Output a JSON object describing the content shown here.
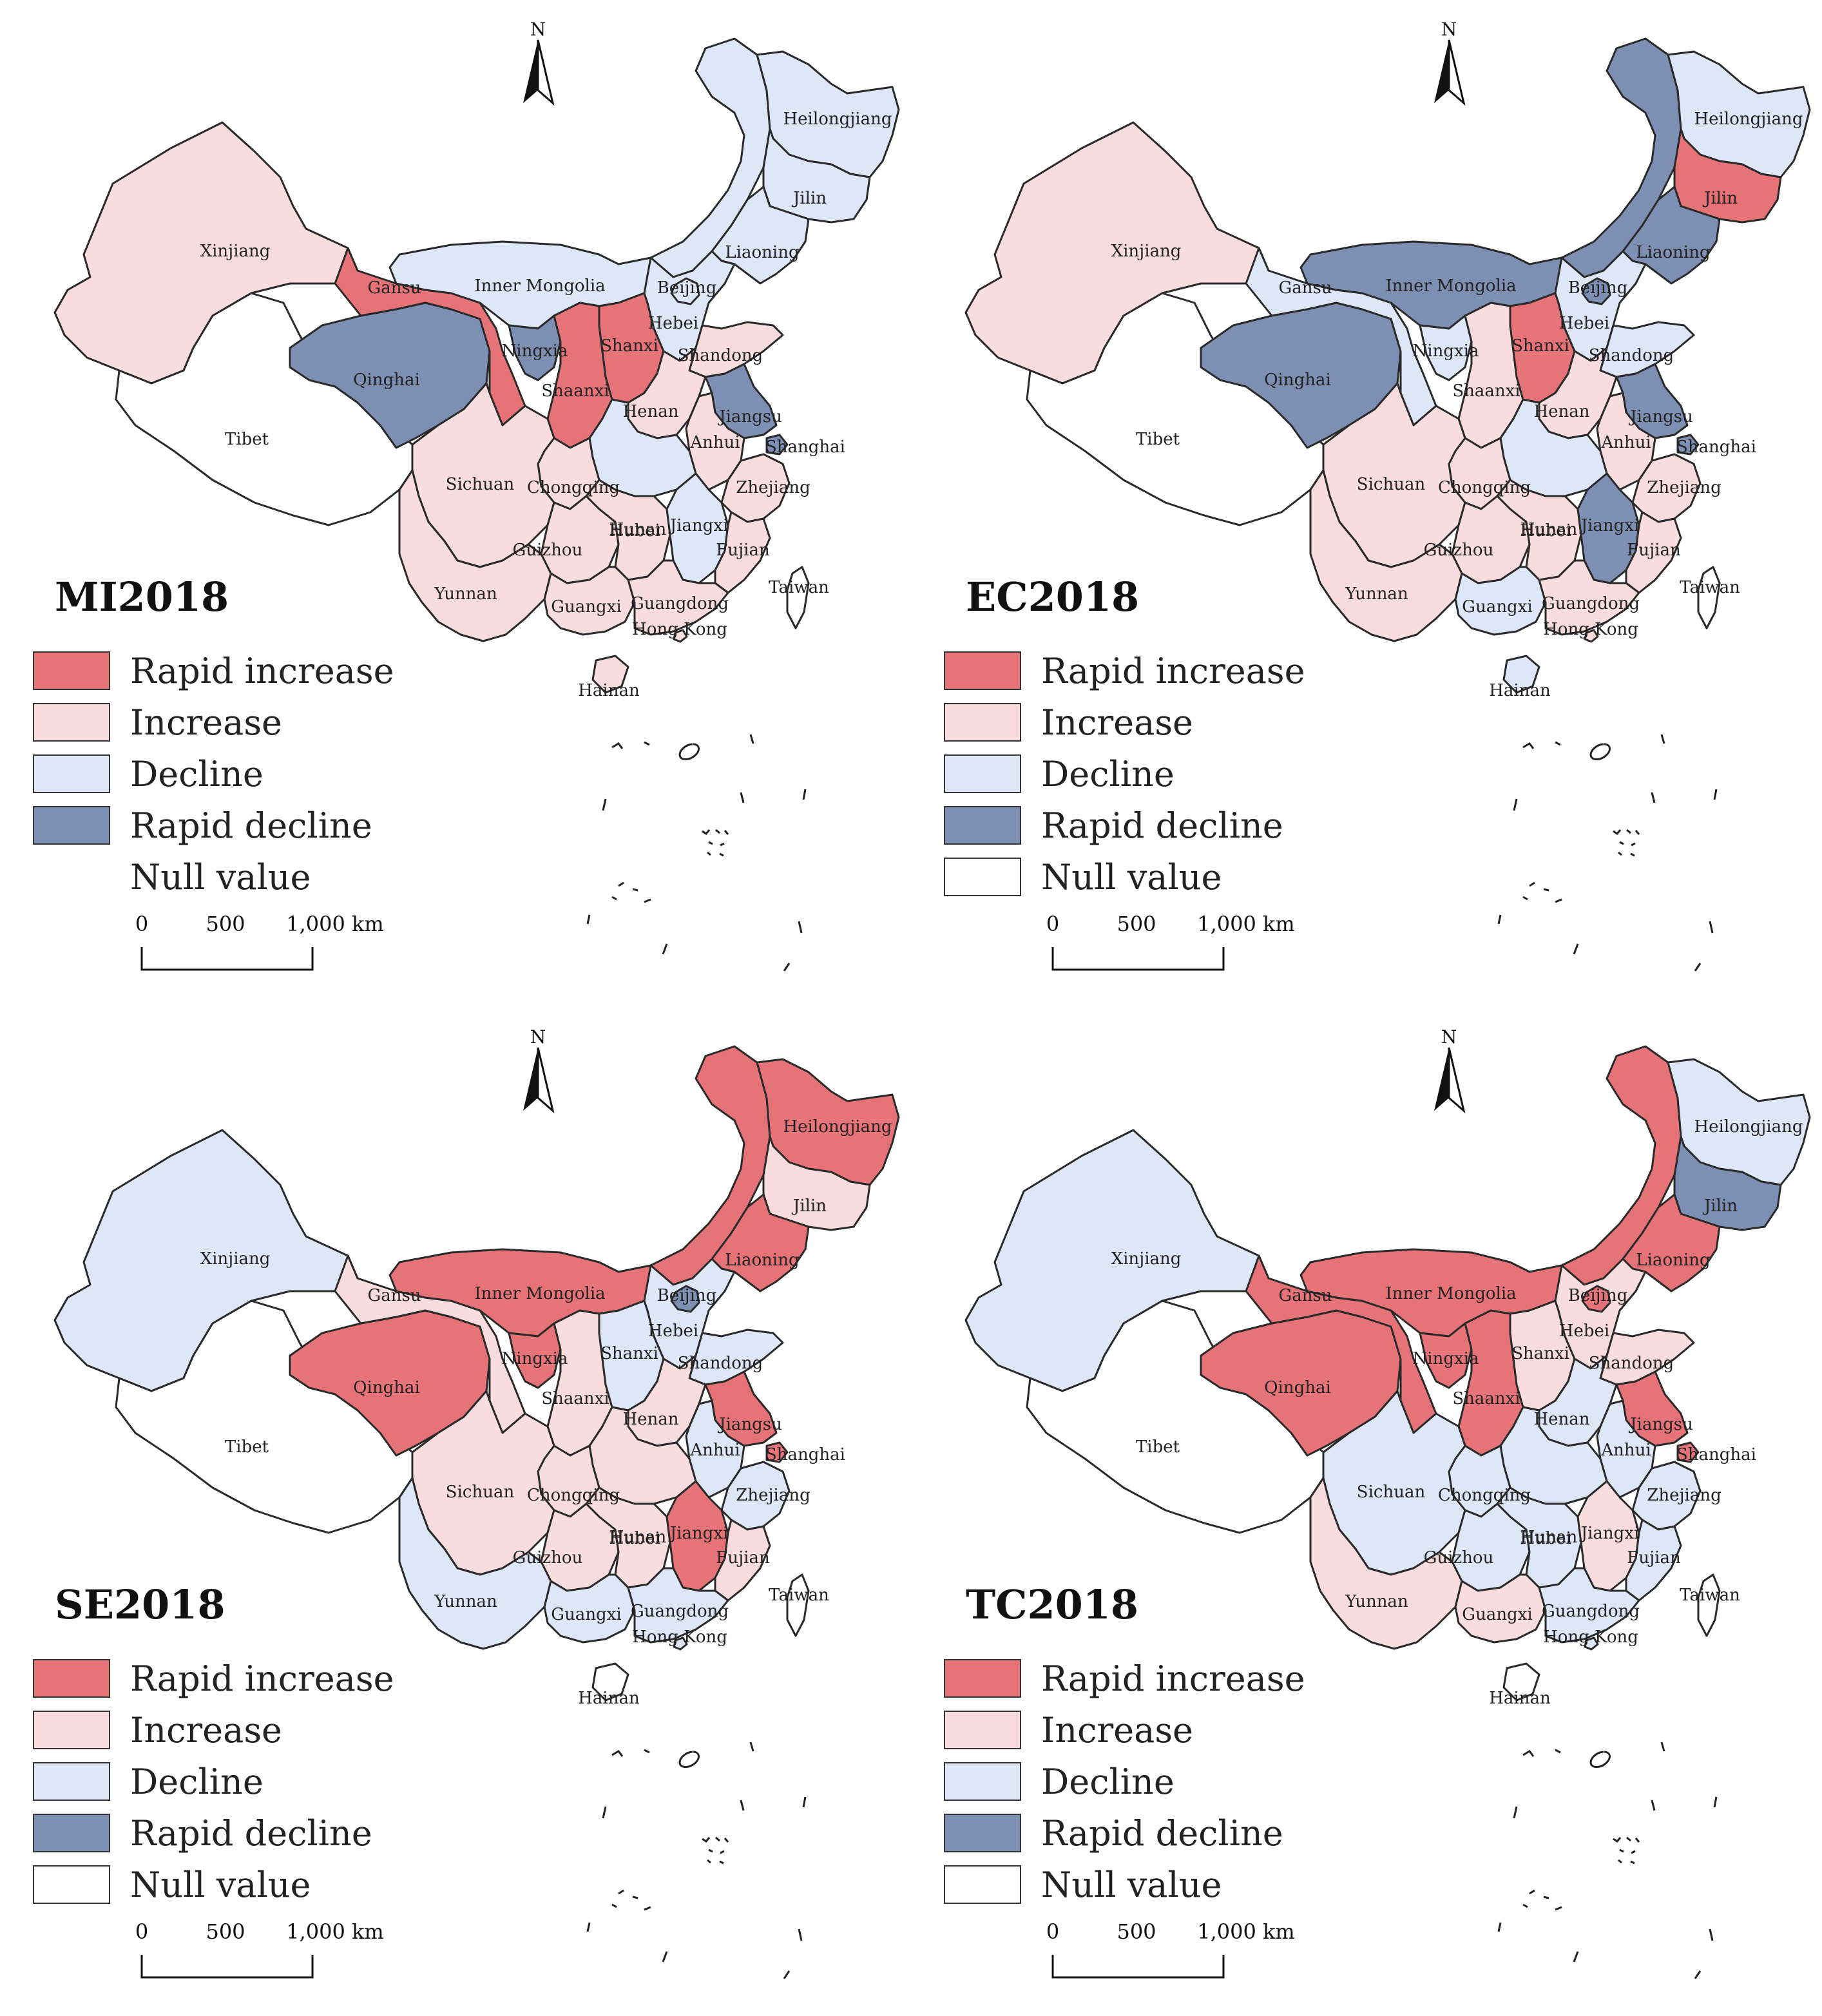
{
  "legend": {
    "categories": [
      {
        "key": "ri",
        "label": "Rapid increase",
        "color": "#e57378"
      },
      {
        "key": "in",
        "label": "Increase",
        "color": "#f9dcdd"
      },
      {
        "key": "de",
        "label": "Decline",
        "color": "#dde7f8"
      },
      {
        "key": "rd",
        "label": "Rapid decline",
        "color": "#7d8fb3"
      },
      {
        "key": "nv",
        "label": "Null value",
        "color": "#ffffff"
      }
    ]
  },
  "scalebar": {
    "labels": [
      "0",
      "500",
      "1,000 km"
    ]
  },
  "north_label": "N",
  "panels": [
    {
      "title": "MI2018",
      "values": {
        "Xinjiang": "in",
        "Tibet": "nv",
        "Qinghai": "rd",
        "Gansu": "ri",
        "Inner Mongolia": "de",
        "Heilongjiang": "de",
        "Jilin": "de",
        "Liaoning": "de",
        "Ningxia": "rd",
        "Shaanxi": "ri",
        "Shanxi": "ri",
        "Hebei": "de",
        "Beijing": "de",
        "Shandong": "in",
        "Henan": "in",
        "Jiangsu": "rd",
        "Shanghai": "rd",
        "Anhui": "in",
        "Hubei": "de",
        "Chongqing": "in",
        "Sichuan": "in",
        "Guizhou": "in",
        "Yunnan": "in",
        "Hunan": "in",
        "Jiangxi": "de",
        "Zhejiang": "in",
        "Fujian": "in",
        "Guangxi": "in",
        "Guangdong": "in",
        "Hong Kong": "in",
        "Hainan": "in",
        "Taiwan": "nv"
      }
    },
    {
      "title": "EC2018",
      "values": {
        "Xinjiang": "in",
        "Tibet": "nv",
        "Qinghai": "rd",
        "Gansu": "de",
        "Inner Mongolia": "rd",
        "Heilongjiang": "de",
        "Jilin": "ri",
        "Liaoning": "rd",
        "Ningxia": "de",
        "Shaanxi": "in",
        "Shanxi": "ri",
        "Hebei": "de",
        "Beijing": "rd",
        "Shandong": "de",
        "Henan": "in",
        "Jiangsu": "rd",
        "Shanghai": "rd",
        "Anhui": "in",
        "Hubei": "de",
        "Chongqing": "in",
        "Sichuan": "in",
        "Guizhou": "in",
        "Yunnan": "in",
        "Hunan": "in",
        "Jiangxi": "rd",
        "Zhejiang": "in",
        "Fujian": "in",
        "Guangxi": "de",
        "Guangdong": "in",
        "Hong Kong": "in",
        "Hainan": "de",
        "Taiwan": "nv"
      }
    },
    {
      "title": "SE2018",
      "values": {
        "Xinjiang": "de",
        "Tibet": "nv",
        "Qinghai": "ri",
        "Gansu": "in",
        "Inner Mongolia": "ri",
        "Heilongjiang": "ri",
        "Jilin": "in",
        "Liaoning": "ri",
        "Ningxia": "ri",
        "Shaanxi": "in",
        "Shanxi": "de",
        "Hebei": "de",
        "Beijing": "rd",
        "Shandong": "de",
        "Henan": "in",
        "Jiangsu": "ri",
        "Shanghai": "ri",
        "Anhui": "de",
        "Hubei": "in",
        "Chongqing": "in",
        "Sichuan": "in",
        "Guizhou": "in",
        "Yunnan": "de",
        "Hunan": "in",
        "Jiangxi": "ri",
        "Zhejiang": "de",
        "Fujian": "in",
        "Guangxi": "de",
        "Guangdong": "de",
        "Hong Kong": "de",
        "Hainan": "nv",
        "Taiwan": "nv"
      }
    },
    {
      "title": "TC2018",
      "values": {
        "Xinjiang": "de",
        "Tibet": "nv",
        "Qinghai": "ri",
        "Gansu": "ri",
        "Inner Mongolia": "ri",
        "Heilongjiang": "de",
        "Jilin": "rd",
        "Liaoning": "ri",
        "Ningxia": "ri",
        "Shaanxi": "ri",
        "Shanxi": "in",
        "Hebei": "in",
        "Beijing": "ri",
        "Shandong": "in",
        "Henan": "de",
        "Jiangsu": "ri",
        "Shanghai": "ri",
        "Anhui": "de",
        "Hubei": "de",
        "Chongqing": "de",
        "Sichuan": "de",
        "Guizhou": "de",
        "Yunnan": "in",
        "Hunan": "de",
        "Jiangxi": "in",
        "Zhejiang": "de",
        "Fujian": "de",
        "Guangxi": "in",
        "Guangdong": "de",
        "Hong Kong": "de",
        "Hainan": "nv",
        "Taiwan": "nv"
      }
    }
  ],
  "provinces": [
    {
      "name": "Xinjiang",
      "label": "Xinjiang"
    },
    {
      "name": "Tibet",
      "label": "Tibet"
    },
    {
      "name": "Qinghai",
      "label": "Qinghai"
    },
    {
      "name": "Gansu",
      "label": "Gansu"
    },
    {
      "name": "Inner Mongolia",
      "label": "Inner Mongolia"
    },
    {
      "name": "Heilongjiang",
      "label": "Heilongjiang"
    },
    {
      "name": "Jilin",
      "label": "Jilin"
    },
    {
      "name": "Liaoning",
      "label": "Liaoning"
    },
    {
      "name": "Ningxia",
      "label": "Ningxia"
    },
    {
      "name": "Shaanxi",
      "label": "Shaanxi"
    },
    {
      "name": "Shanxi",
      "label": "Shanxi"
    },
    {
      "name": "Hebei",
      "label": "Hebei"
    },
    {
      "name": "Beijing",
      "label": "Beijing"
    },
    {
      "name": "Shandong",
      "label": "Shandong"
    },
    {
      "name": "Henan",
      "label": "Henan"
    },
    {
      "name": "Jiangsu",
      "label": "Jiangsu"
    },
    {
      "name": "Shanghai",
      "label": "Shanghai"
    },
    {
      "name": "Anhui",
      "label": "Anhui"
    },
    {
      "name": "Hubei",
      "label": "Hubei"
    },
    {
      "name": "Chongqing",
      "label": "Chongqing"
    },
    {
      "name": "Sichuan",
      "label": "Sichuan"
    },
    {
      "name": "Guizhou",
      "label": "Guizhou"
    },
    {
      "name": "Yunnan",
      "label": "Yunnan"
    },
    {
      "name": "Hunan",
      "label": "Hunan"
    },
    {
      "name": "Jiangxi",
      "label": "Jiangxi"
    },
    {
      "name": "Zhejiang",
      "label": "Zhejiang"
    },
    {
      "name": "Fujian",
      "label": "Fujian"
    },
    {
      "name": "Guangxi",
      "label": "Guangxi"
    },
    {
      "name": "Guangdong",
      "label": "Guangdong"
    },
    {
      "name": "Hong Kong",
      "label": "Hong Kong"
    },
    {
      "name": "Hainan",
      "label": "Hainan"
    },
    {
      "name": "Taiwan",
      "label": "Taiwan"
    }
  ]
}
